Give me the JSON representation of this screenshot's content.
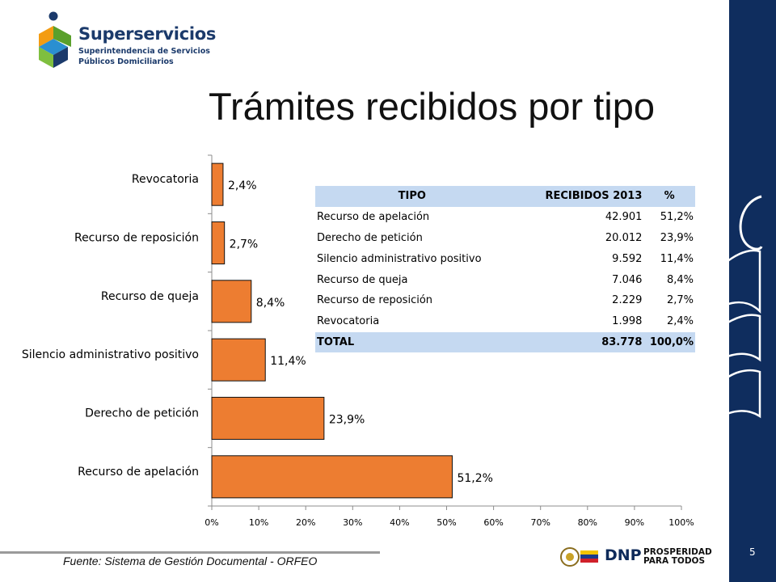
{
  "header": {
    "brand": "Superservicios",
    "brand_sub1": "Superintendencia de Servicios",
    "brand_sub2": "Públicos Domiciliarios",
    "title": "Trámites recibidos por tipo"
  },
  "table": {
    "headers": [
      "TIPO",
      "RECIBIDOS 2013",
      "%"
    ],
    "rows": [
      [
        "Recurso de apelación",
        "42.901",
        "51,2%"
      ],
      [
        "Derecho de petición",
        "20.012",
        "23,9%"
      ],
      [
        "Silencio administrativo positivo",
        "9.592",
        "11,4%"
      ],
      [
        "Recurso de queja",
        "7.046",
        "8,4%"
      ],
      [
        "Recurso de reposición",
        "2.229",
        "2,7%"
      ],
      [
        "Revocatoria",
        "1.998",
        "2,4%"
      ]
    ],
    "total": [
      "TOTAL",
      "83.778",
      "100,0%"
    ]
  },
  "chart_data": {
    "type": "bar",
    "orientation": "horizontal",
    "categories": [
      "Revocatoria",
      "Recurso de reposición",
      "Recurso de queja",
      "Silencio administrativo positivo",
      "Derecho de petición",
      "Recurso de apelación"
    ],
    "values": [
      2.4,
      2.7,
      8.4,
      11.4,
      23.9,
      51.2
    ],
    "data_labels": [
      "2,4%",
      "2,7%",
      "8,4%",
      "11,4%",
      "23,9%",
      "51,2%"
    ],
    "xlim": [
      0,
      100
    ],
    "xticks": [
      "0%",
      "10%",
      "20%",
      "30%",
      "40%",
      "50%",
      "60%",
      "70%",
      "80%",
      "90%",
      "100%"
    ],
    "bar_color": "#ed7d31",
    "bar_edge": "#111111",
    "grid": false,
    "legend": "none"
  },
  "footer": {
    "source": "Fuente: Sistema de Gestión Documental - ORFEO",
    "page_number": "5",
    "dnp": "DNP",
    "prosperidad_1": "PROSPERIDAD",
    "prosperidad_2": "PARA TODOS"
  },
  "colors": {
    "band": "#0f2d5e",
    "brand": "#1b3a6b",
    "table_header": "#c5d9f1"
  }
}
